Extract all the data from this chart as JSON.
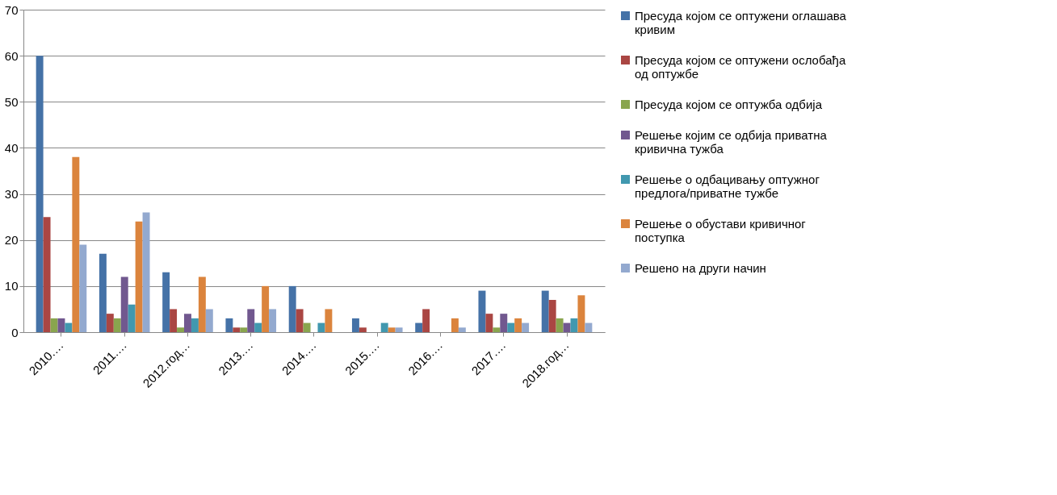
{
  "chart_data": {
    "type": "bar",
    "categories": [
      "2010.…",
      "2011.…",
      "2012.год…",
      "2013.…",
      "2014.…",
      "2015.…",
      "2016.…",
      "2017.…",
      "2018.год…"
    ],
    "series": [
      {
        "name": "Пресуда којом се оптужени оглашава кривим",
        "color": "#4572a7",
        "values": [
          60,
          17,
          13,
          3,
          10,
          3,
          2,
          9,
          9
        ]
      },
      {
        "name": "Пресуда којом се оптужени ослобађа од оптужбе",
        "color": "#aa4643",
        "values": [
          25,
          4,
          5,
          1,
          5,
          1,
          5,
          4,
          7
        ]
      },
      {
        "name": "Пресуда којом се оптужба одбија",
        "color": "#89a54e",
        "values": [
          3,
          3,
          1,
          1,
          2,
          null,
          null,
          1,
          3
        ]
      },
      {
        "name": "Решење којим се одбија приватна кривична тужба",
        "color": "#71588f",
        "values": [
          3,
          12,
          4,
          5,
          null,
          null,
          null,
          4,
          2
        ]
      },
      {
        "name": "Решење о одбацивању оптужног предлога/приватне тужбе",
        "color": "#4198af",
        "values": [
          2,
          6,
          3,
          2,
          2,
          2,
          null,
          2,
          3
        ]
      },
      {
        "name": "Решење о обустави кривичног поступка",
        "color": "#db843d",
        "values": [
          38,
          24,
          12,
          10,
          5,
          1,
          3,
          3,
          8
        ]
      },
      {
        "name": "Решено на други начин",
        "color": "#93a9cf",
        "values": [
          19,
          26,
          5,
          5,
          null,
          1,
          1,
          2,
          2
        ]
      }
    ],
    "ylim": [
      0,
      70
    ],
    "yticks": [
      0,
      10,
      20,
      30,
      40,
      50,
      60,
      70
    ],
    "grid": "y",
    "legend": "right"
  }
}
